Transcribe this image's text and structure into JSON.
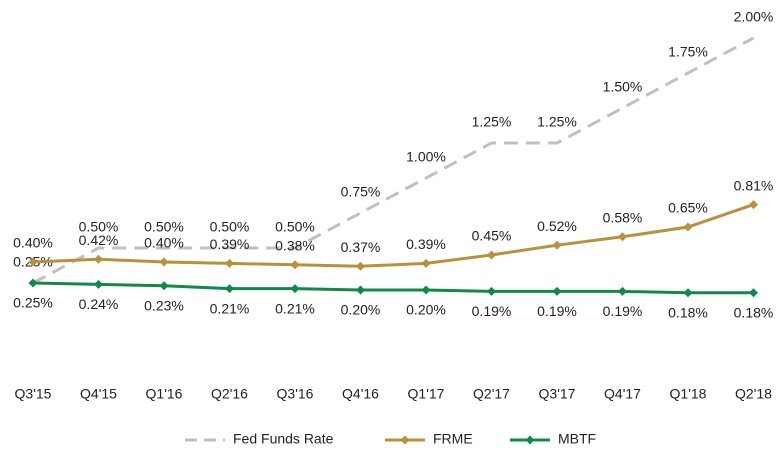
{
  "chart_data": {
    "type": "line",
    "categories": [
      "Q3'15",
      "Q4'15",
      "Q1'16",
      "Q2'16",
      "Q3'16",
      "Q4'16",
      "Q1'17",
      "Q2'17",
      "Q3'17",
      "Q4'17",
      "Q1'18",
      "Q2'18"
    ],
    "series": [
      {
        "name": "Fed Funds Rate",
        "color": "#c0c0c0",
        "dashed": true,
        "markers": false,
        "values": [
          0.25,
          0.5,
          0.5,
          0.5,
          0.5,
          0.75,
          1.0,
          1.25,
          1.25,
          1.5,
          1.75,
          2.0
        ],
        "value_labels": [
          "0.25%",
          "0.50%",
          "0.50%",
          "0.50%",
          "0.50%",
          "0.75%",
          "1.00%",
          "1.25%",
          "1.25%",
          "1.50%",
          "1.75%",
          "2.00%"
        ]
      },
      {
        "name": "FRME",
        "color": "#b8913a",
        "dashed": false,
        "markers": true,
        "values": [
          0.4,
          0.42,
          0.4,
          0.39,
          0.38,
          0.37,
          0.39,
          0.45,
          0.52,
          0.58,
          0.65,
          0.81
        ],
        "value_labels": [
          "0.40%",
          "0.42%",
          "0.40%",
          "0.39%",
          "0.38%",
          "0.37%",
          "0.39%",
          "0.45%",
          "0.52%",
          "0.58%",
          "0.65%",
          "0.81%"
        ]
      },
      {
        "name": "MBTF",
        "color": "#108a4b",
        "dashed": false,
        "markers": true,
        "values": [
          0.25,
          0.24,
          0.23,
          0.21,
          0.21,
          0.2,
          0.2,
          0.19,
          0.19,
          0.19,
          0.18,
          0.18
        ],
        "value_labels": [
          "0.25%",
          "0.24%",
          "0.23%",
          "0.21%",
          "0.21%",
          "0.20%",
          "0.20%",
          "0.19%",
          "0.19%",
          "0.19%",
          "0.18%",
          "0.18%"
        ]
      }
    ]
  }
}
